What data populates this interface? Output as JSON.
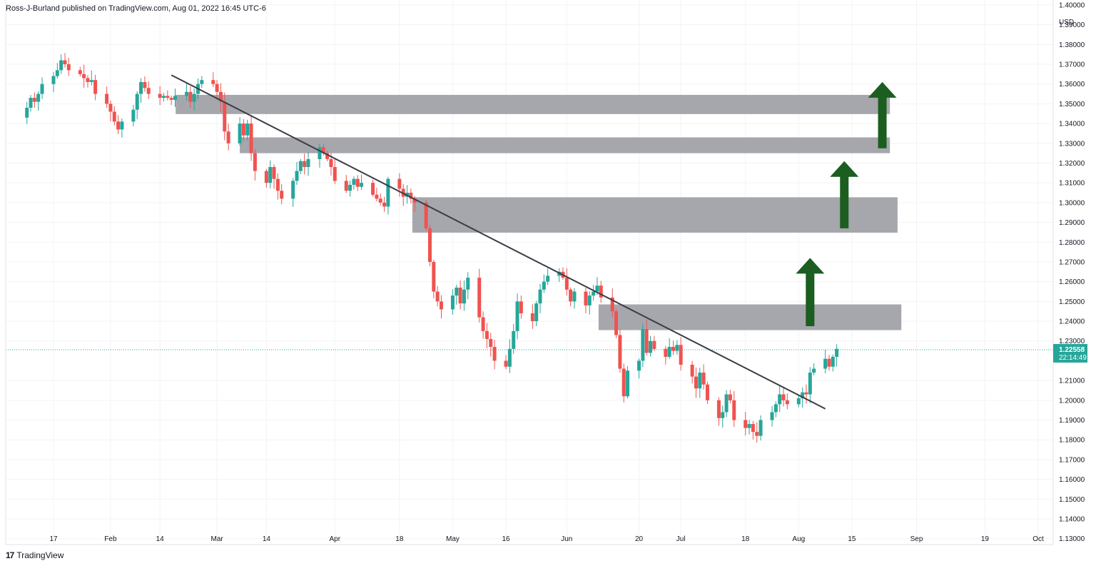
{
  "header": {
    "text": "Ross-J-Burland published on TradingView.com, Aug 01, 2022 16:45 UTC-6"
  },
  "footer": {
    "logo_mark": "17",
    "brand": "TradingView"
  },
  "colors": {
    "up": "#26a69a",
    "down": "#ef5350",
    "zone": "#9e9ea6",
    "arrow": "#1b5e20",
    "trendline": "#3c3c46",
    "price_label": "#26a69a"
  },
  "chart_data": {
    "type": "candlestick",
    "currency_label": "USD",
    "y_ticks": [
      "1.40000",
      "1.39000",
      "1.38000",
      "1.37000",
      "1.36000",
      "1.35000",
      "1.34000",
      "1.33000",
      "1.32000",
      "1.31000",
      "1.30000",
      "1.29000",
      "1.28000",
      "1.27000",
      "1.26000",
      "1.25000",
      "1.24000",
      "1.23000",
      "1.21000",
      "1.20000",
      "1.19000",
      "1.18000",
      "1.17000",
      "1.16000",
      "1.15000",
      "1.14000",
      "1.13000"
    ],
    "ylim": [
      1.127,
      1.4025
    ],
    "x_ticks": [
      {
        "label": "17",
        "date": "2022-01-17"
      },
      {
        "label": "Feb",
        "date": "2022-02-01"
      },
      {
        "label": "14",
        "date": "2022-02-14"
      },
      {
        "label": "Mar",
        "date": "2022-03-01"
      },
      {
        "label": "14",
        "date": "2022-03-14"
      },
      {
        "label": "Apr",
        "date": "2022-04-01"
      },
      {
        "label": "18",
        "date": "2022-04-18"
      },
      {
        "label": "May",
        "date": "2022-05-02"
      },
      {
        "label": "16",
        "date": "2022-05-16"
      },
      {
        "label": "Jun",
        "date": "2022-06-01"
      },
      {
        "label": "20",
        "date": "2022-06-20"
      },
      {
        "label": "Jul",
        "date": "2022-07-01"
      },
      {
        "label": "18",
        "date": "2022-07-18"
      },
      {
        "label": "Aug",
        "date": "2022-08-01"
      },
      {
        "label": "15",
        "date": "2022-08-15"
      },
      {
        "label": "Sep",
        "date": "2022-09-01"
      },
      {
        "label": "19",
        "date": "2022-09-19"
      },
      {
        "label": "Oct",
        "date": "2022-10-03"
      }
    ],
    "last_price": {
      "value": 1.22558,
      "label": "1.22558",
      "countdown": "22:14:49"
    },
    "closes": [
      1.348,
      1.353,
      1.351,
      1.355,
      1.36,
      1.364,
      1.367,
      1.372,
      1.37,
      1.367,
      1.365,
      1.363,
      1.361,
      1.362,
      1.355,
      1.35,
      1.346,
      1.341,
      1.337,
      1.341,
      1.347,
      1.355,
      1.361,
      1.358,
      1.355,
      1.353,
      1.354,
      1.353,
      1.352,
      1.354,
      1.356,
      1.351,
      1.355,
      1.36,
      1.362,
      1.36,
      1.356,
      1.351,
      1.336,
      1.33,
      1.34,
      1.334,
      1.34,
      1.325,
      1.316,
      1.31,
      1.318,
      1.312,
      1.306,
      1.302,
      1.311,
      1.316,
      1.321,
      1.318,
      1.322,
      1.328,
      1.325,
      1.322,
      1.318,
      1.311,
      1.306,
      1.309,
      1.312,
      1.308,
      1.31,
      1.304,
      1.302,
      1.3,
      1.298,
      1.312,
      1.307,
      1.303,
      1.305,
      1.302,
      1.3,
      1.287,
      1.27,
      1.255,
      1.25,
      1.246,
      1.253,
      1.257,
      1.249,
      1.256,
      1.262,
      1.242,
      1.235,
      1.231,
      1.227,
      1.22,
      1.217,
      1.226,
      1.235,
      1.25,
      1.244,
      1.24,
      1.249,
      1.256,
      1.26,
      1.263,
      1.265,
      1.262,
      1.256,
      1.25,
      1.255,
      1.248,
      1.253,
      1.255,
      1.258,
      1.252,
      1.245,
      1.233,
      1.216,
      1.202,
      1.215,
      1.22,
      1.236,
      1.224,
      1.23,
      1.226,
      1.222,
      1.227,
      1.225,
      1.228,
      1.218,
      1.212,
      1.206,
      1.214,
      1.208,
      1.2,
      1.191,
      1.194,
      1.203,
      1.2,
      1.19,
      1.186,
      1.188,
      1.184,
      1.182,
      1.19,
      1.194,
      1.198,
      1.203,
      1.2,
      1.198,
      1.201,
      1.204,
      1.203,
      1.214,
      1.216,
      1.221,
      1.217,
      1.222,
      1.226
    ],
    "zones": [
      {
        "from": 1.3448,
        "to": 1.3545,
        "end_date": "2022-08-25"
      },
      {
        "from": 1.325,
        "to": 1.333,
        "end_date": "2022-08-25"
      },
      {
        "from": 1.2848,
        "to": 1.3027,
        "end_date": "2022-08-27"
      },
      {
        "from": 1.2355,
        "to": 1.2485,
        "end_date": "2022-08-28"
      }
    ],
    "trendline": {
      "start": {
        "date": "2022-02-17",
        "price": 1.3645
      },
      "end": {
        "date": "2022-08-08",
        "price": 1.1957
      }
    },
    "arrows": [
      {
        "date": "2022-08-04",
        "from": 1.2375,
        "to": 1.272
      },
      {
        "date": "2022-08-13",
        "from": 1.287,
        "to": 1.321
      },
      {
        "date": "2022-08-23",
        "from": 1.3275,
        "to": 1.361
      }
    ]
  }
}
